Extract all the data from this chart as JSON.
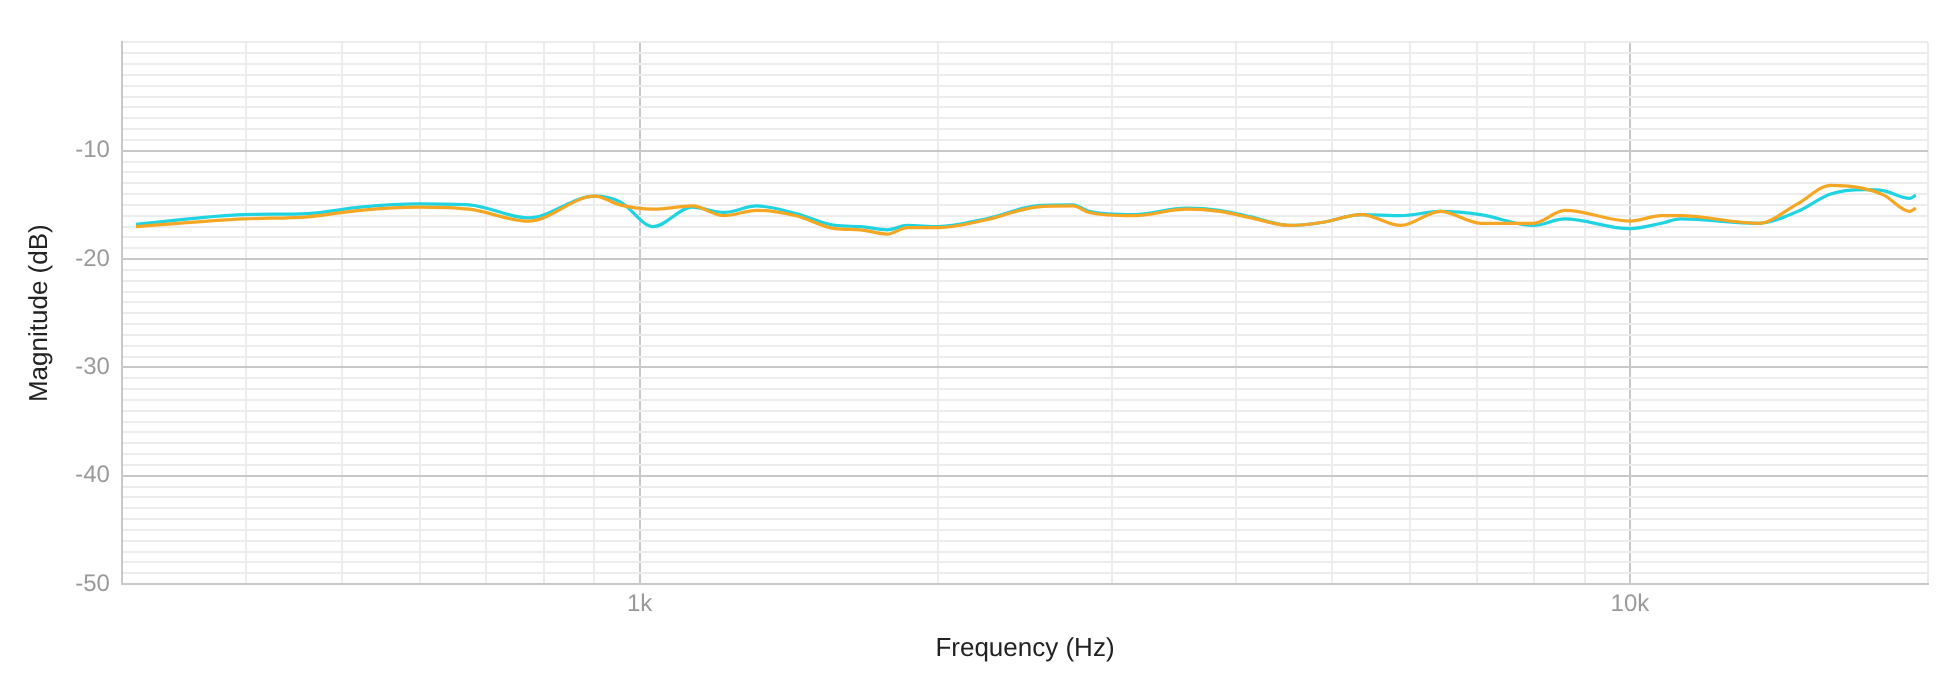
{
  "chart_data": {
    "type": "line",
    "xlabel": "Frequency (Hz)",
    "ylabel": "Magnitude (dB)",
    "log": "x",
    "grid": true,
    "legend": false,
    "marker": "none",
    "line_style": "solid",
    "xlim": [
      300,
      20000
    ],
    "ylim": [
      -50,
      0
    ],
    "xticks": [
      {
        "value": 300,
        "label": null
      },
      {
        "value": 400,
        "label": null
      },
      {
        "value": 500,
        "label": null
      },
      {
        "value": 600,
        "label": null
      },
      {
        "value": 700,
        "label": null
      },
      {
        "value": 800,
        "label": null
      },
      {
        "value": 900,
        "label": null
      },
      {
        "value": 1000,
        "label": "1k"
      },
      {
        "value": 2000,
        "label": null
      },
      {
        "value": 3000,
        "label": null
      },
      {
        "value": 4000,
        "label": null
      },
      {
        "value": 5000,
        "label": null
      },
      {
        "value": 6000,
        "label": null
      },
      {
        "value": 7000,
        "label": null
      },
      {
        "value": 8000,
        "label": null
      },
      {
        "value": 9000,
        "label": null
      },
      {
        "value": 10000,
        "label": "10k"
      },
      {
        "value": 20000,
        "label": null
      }
    ],
    "yticks": [
      -50,
      {
        "value": -49,
        "label": null
      },
      {
        "value": -48,
        "label": null
      },
      {
        "value": -47,
        "label": null
      },
      {
        "value": -46,
        "label": null
      },
      {
        "value": -45,
        "label": null
      },
      {
        "value": -44,
        "label": null
      },
      {
        "value": -43,
        "label": null
      },
      {
        "value": -42,
        "label": null
      },
      {
        "value": -41,
        "label": null
      },
      -40,
      {
        "value": -39,
        "label": null
      },
      {
        "value": -38,
        "label": null
      },
      {
        "value": -37,
        "label": null
      },
      {
        "value": -36,
        "label": null
      },
      {
        "value": -35,
        "label": null
      },
      {
        "value": -34,
        "label": null
      },
      {
        "value": -33,
        "label": null
      },
      {
        "value": -32,
        "label": null
      },
      {
        "value": -31,
        "label": null
      },
      -30,
      {
        "value": -29,
        "label": null
      },
      {
        "value": -28,
        "label": null
      },
      {
        "value": -27,
        "label": null
      },
      {
        "value": -26,
        "label": null
      },
      {
        "value": -25,
        "label": null
      },
      {
        "value": -24,
        "label": null
      },
      {
        "value": -23,
        "label": null
      },
      {
        "value": -22,
        "label": null
      },
      {
        "value": -21,
        "label": null
      },
      -20,
      {
        "value": -19,
        "label": null
      },
      {
        "value": -18,
        "label": null
      },
      {
        "value": -17,
        "label": null
      },
      {
        "value": -16,
        "label": null
      },
      {
        "value": -15,
        "label": null
      },
      {
        "value": -14,
        "label": null
      },
      {
        "value": -13,
        "label": null
      },
      {
        "value": -12,
        "label": null
      },
      {
        "value": -11,
        "label": null
      },
      -10,
      {
        "value": -9,
        "label": null
      },
      {
        "value": -8,
        "label": null
      },
      {
        "value": -7,
        "label": null
      },
      {
        "value": -6,
        "label": null
      },
      {
        "value": -5,
        "label": null
      },
      {
        "value": -4,
        "label": null
      },
      {
        "value": -3,
        "label": null
      },
      {
        "value": -2,
        "label": null
      },
      {
        "value": -1,
        "label": null
      },
      {
        "value": 0,
        "label": null
      }
    ],
    "x": [
      310,
      398,
      462,
      522,
      598,
      673,
      772,
      901,
      955,
      1032,
      1130,
      1216,
      1313,
      1438,
      1575,
      1670,
      1779,
      1863,
      2002,
      2235,
      2515,
      2740,
      2843,
      3154,
      3567,
      3850,
      4143,
      4535,
      4900,
      5354,
      5870,
      6436,
      7066,
      7990,
      8595,
      10000,
      10760,
      11250,
      13480,
      14770,
      15950,
      17240,
      18050,
      19160,
      19440
    ],
    "series": [
      {
        "color": "#f5a623",
        "values": [
          -17.0,
          -16.3,
          -16.1,
          -15.5,
          -15.2,
          -15.4,
          -16.5,
          -14.2,
          -15.0,
          -15.4,
          -15.1,
          -16.0,
          -15.5,
          -16.0,
          -17.2,
          -17.3,
          -17.7,
          -17.1,
          -17.1,
          -16.4,
          -15.2,
          -15.1,
          -15.7,
          -16.0,
          -15.4,
          -15.6,
          -16.2,
          -16.9,
          -16.6,
          -15.9,
          -16.9,
          -15.6,
          -16.7,
          -16.7,
          -15.5,
          -16.5,
          -16.0,
          -16.0,
          -16.7,
          -14.9,
          -13.2,
          -13.5,
          -14.1,
          -15.6,
          -15.3
        ]
      },
      {
        "color": "#1fd3e0",
        "values": [
          -16.8,
          -15.9,
          -15.8,
          -15.2,
          -14.9,
          -15.0,
          -16.2,
          -14.2,
          -14.7,
          -17.0,
          -15.2,
          -15.7,
          -15.1,
          -15.8,
          -16.9,
          -17.0,
          -17.3,
          -16.9,
          -17.0,
          -16.3,
          -15.1,
          -15.0,
          -15.6,
          -15.9,
          -15.3,
          -15.5,
          -16.1,
          -16.9,
          -16.6,
          -15.9,
          -16.0,
          -15.6,
          -15.9,
          -16.9,
          -16.3,
          -17.2,
          -16.7,
          -16.3,
          -16.7,
          -15.6,
          -14.0,
          -13.6,
          -13.7,
          -14.4,
          -14.1
        ]
      }
    ]
  }
}
